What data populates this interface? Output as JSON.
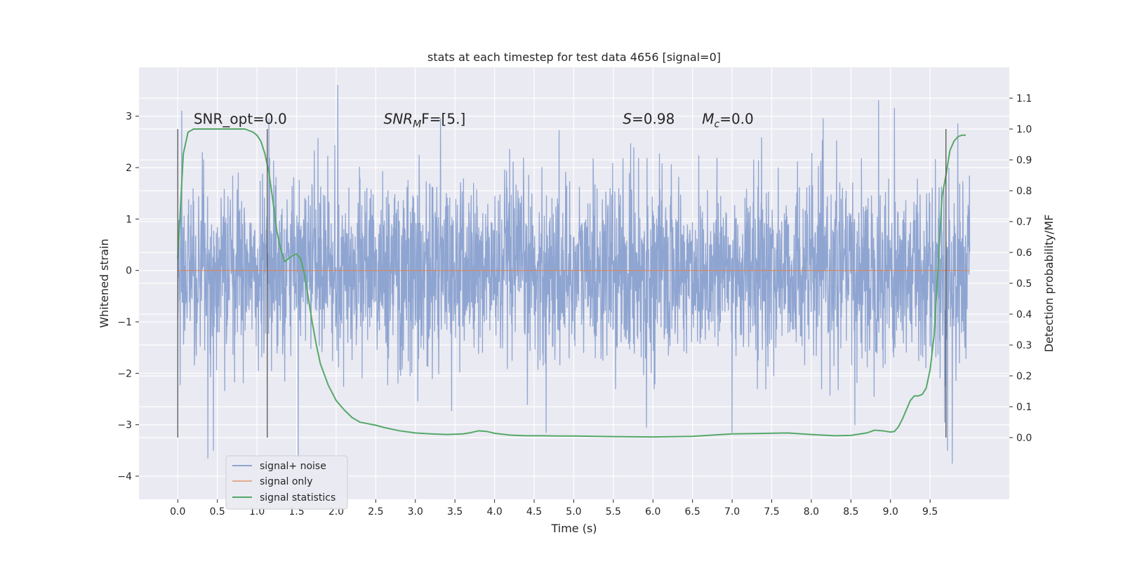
{
  "chart_data": {
    "type": "line",
    "title": "stats at each timestep for test data 4656 [signal=0]",
    "xlabel": "Time (s)",
    "ylabel_left": "Whitened strain",
    "ylabel_right": "Detection probability/MF",
    "xlim": [
      -0.49,
      10.5
    ],
    "ylim_left": [
      -4.45,
      3.95
    ],
    "ylim_right": [
      -0.2,
      1.2
    ],
    "xticks": [
      "0.0",
      "0.5",
      "1.0",
      "1.5",
      "2.0",
      "2.5",
      "3.0",
      "3.5",
      "4.0",
      "4.5",
      "5.0",
      "5.5",
      "6.0",
      "6.5",
      "7.0",
      "7.5",
      "8.0",
      "8.5",
      "9.0",
      "9.5"
    ],
    "xtick_values": [
      0,
      0.5,
      1,
      1.5,
      2,
      2.5,
      3,
      3.5,
      4,
      4.5,
      5,
      5.5,
      6,
      6.5,
      7,
      7.5,
      8,
      8.5,
      9,
      9.5
    ],
    "yticks_left": [
      "−4",
      "−3",
      "−2",
      "−1",
      "0",
      "1",
      "2",
      "3"
    ],
    "ytick_values_left": [
      -4,
      -3,
      -2,
      -1,
      0,
      1,
      2,
      3
    ],
    "yticks_right": [
      "0.0",
      "0.1",
      "0.2",
      "0.3",
      "0.4",
      "0.5",
      "0.6",
      "0.7",
      "0.8",
      "0.9",
      "1.0",
      "1.1"
    ],
    "ytick_values_right": [
      0,
      0.1,
      0.2,
      0.3,
      0.4,
      0.5,
      0.6,
      0.7,
      0.8,
      0.9,
      1.0,
      1.1
    ],
    "grid": true,
    "legend_placement": "lower-left",
    "annotations": {
      "snr_opt": "SNR_opt=0.0",
      "snr_mf_base": "SNR",
      "snr_mf_sub": "M",
      "snr_mf_rest": "F=[5.]",
      "s_italic": "S",
      "s_rest": "=0.98",
      "mc_base": "M",
      "mc_sub": "c",
      "mc_rest": "=0.0"
    },
    "annotation_x": {
      "snr_opt": 0.2,
      "snr_mf": 2.6,
      "s": 5.62,
      "mc": 6.62
    },
    "annotation_y_left": 2.85,
    "vlines_x": [
      0.0,
      1.13,
      9.7
    ],
    "vlines_range_right": [
      0.0,
      1.0
    ],
    "series": [
      {
        "name": "signal+ noise",
        "color": "#8fa5d1",
        "axis": "left",
        "x_range": [
          0,
          10
        ],
        "amplitude_typical": 1.4,
        "peaks": [
          {
            "x": 2.02,
            "y": 3.6
          },
          {
            "x": 0.05,
            "y": 3.1
          },
          {
            "x": 8.85,
            "y": 3.3
          },
          {
            "x": 9.05,
            "y": 3.15
          },
          {
            "x": 1.15,
            "y": 2.95
          },
          {
            "x": 9.85,
            "y": 2.85
          },
          {
            "x": 0.38,
            "y": -3.65
          },
          {
            "x": 0.45,
            "y": -3.5
          },
          {
            "x": 1.52,
            "y": -3.65
          },
          {
            "x": 9.78,
            "y": -3.75
          },
          {
            "x": 9.72,
            "y": -3.5
          },
          {
            "x": 4.65,
            "y": -3.15
          },
          {
            "x": 7.0,
            "y": -3.15
          },
          {
            "x": 5.92,
            "y": -3.05
          },
          {
            "x": 8.55,
            "y": -3.0
          }
        ]
      },
      {
        "name": "signal only",
        "color": "#dd8452",
        "axis": "left",
        "x": [
          0,
          10
        ],
        "y": [
          0,
          0
        ]
      },
      {
        "name": "signal statistics",
        "color": "#55a868",
        "axis": "right",
        "x": [
          0.0,
          0.07,
          0.13,
          0.2,
          0.3,
          0.5,
          0.7,
          0.85,
          0.95,
          1.0,
          1.05,
          1.1,
          1.15,
          1.2,
          1.25,
          1.3,
          1.35,
          1.4,
          1.45,
          1.5,
          1.55,
          1.6,
          1.65,
          1.7,
          1.75,
          1.8,
          1.9,
          2.0,
          2.1,
          2.2,
          2.3,
          2.4,
          2.5,
          2.6,
          2.8,
          3.0,
          3.2,
          3.4,
          3.6,
          3.7,
          3.8,
          3.9,
          4.0,
          4.2,
          4.4,
          4.6,
          4.8,
          5.0,
          5.5,
          6.0,
          6.5,
          7.0,
          7.3,
          7.7,
          8.0,
          8.3,
          8.5,
          8.7,
          8.8,
          8.9,
          9.0,
          9.05,
          9.1,
          9.15,
          9.2,
          9.25,
          9.3,
          9.35,
          9.4,
          9.45,
          9.5,
          9.55,
          9.6,
          9.65,
          9.7,
          9.75,
          9.8,
          9.85,
          9.9,
          9.95
        ],
        "y": [
          0.58,
          0.92,
          0.99,
          1.0,
          1.0,
          1.0,
          1.0,
          1.0,
          0.99,
          0.98,
          0.96,
          0.92,
          0.86,
          0.77,
          0.67,
          0.61,
          0.57,
          0.58,
          0.59,
          0.595,
          0.58,
          0.53,
          0.45,
          0.37,
          0.3,
          0.24,
          0.17,
          0.12,
          0.09,
          0.065,
          0.05,
          0.045,
          0.04,
          0.033,
          0.022,
          0.015,
          0.012,
          0.01,
          0.012,
          0.016,
          0.022,
          0.02,
          0.014,
          0.008,
          0.006,
          0.006,
          0.005,
          0.005,
          0.003,
          0.002,
          0.004,
          0.012,
          0.013,
          0.015,
          0.01,
          0.006,
          0.007,
          0.015,
          0.024,
          0.022,
          0.018,
          0.02,
          0.035,
          0.06,
          0.09,
          0.12,
          0.135,
          0.135,
          0.14,
          0.16,
          0.22,
          0.33,
          0.55,
          0.78,
          0.85,
          0.93,
          0.96,
          0.975,
          0.98,
          0.98
        ]
      }
    ]
  }
}
